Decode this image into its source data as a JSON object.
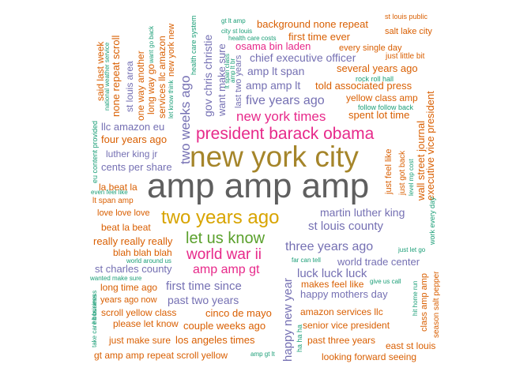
{
  "colors": {
    "gray": "#5f5f5f",
    "olive": "#a5852a",
    "pink": "#e7298a",
    "gold": "#d8a400",
    "green": "#5aa02c",
    "purple": "#7570b3",
    "orange": "#d95f02",
    "teal": "#1b9e77"
  },
  "words": {
    "amp_amp_amp": "amp amp amp",
    "new_york_city": "new york city",
    "president_barack_obama": "president barack obama",
    "two_years_ago": "two years ago",
    "let_us_know": "let us know",
    "world_war_ii": "world war ii",
    "new_york_times": "new york times",
    "five_years_ago": "five years ago",
    "two_weeks_ago": "two weeks ago",
    "three_years_ago": "three years ago",
    "martin_luther_king": "martin luther king",
    "st_louis_county": "st louis county",
    "amp_amp_gt": "amp amp gt",
    "first_time_since": "first time since",
    "luck_luck_luck": "luck luck luck",
    "amp_lt_span": "amp lt span",
    "amp_amp_lt": "amp amp lt",
    "happy_new_year": "happy new year",
    "chief_executive_officer": "chief executive officer",
    "osama_bin_laden": "osama bin laden",
    "past_two_years": "past two years",
    "four_years_ago": "four years ago",
    "st_charles_county": "st charles county",
    "world_trade_center": "world trade center",
    "happy_mothers_day": "happy mothers day",
    "cinco_de_mayo": "cinco de mayo",
    "told_associated_press": "told associated press",
    "spent_lot_time": "spent lot time",
    "cents_per_share": "cents per share",
    "gov_chris_christie": "gov chris christie",
    "want_make_sure": "want make sure",
    "last_two_years": "last two years",
    "background_none_repeat": "background none repeat",
    "first_time_ever": "first time ever",
    "several_years_ago": "several years ago",
    "yellow_class_amp": "yellow class amp",
    "executive_vice_president": "executive vice president",
    "wall_street_journal": "wall street journal",
    "llc_amazon_eu": "llc amazon eu",
    "luther_king_jr": "luther king jr",
    "la_beat_la": "la beat la",
    "love_love_love": "love love love",
    "beat_la_beat": "beat la beat",
    "really_really_really": "really really really",
    "blah_blah_blah": "blah blah blah",
    "long_time_ago": "long time ago",
    "years_ago_now": "years ago now",
    "scroll_yellow_class": "scroll yellow class",
    "please_let_know": "please let know",
    "just_make_sure": "just make sure",
    "couple_weeks_ago": "couple weeks ago",
    "los_angeles_times": "los angeles times",
    "gt_amp_amp": "gt amp amp",
    "repeat_scroll_yellow": "repeat scroll yellow",
    "amazon_services_llc": "amazon services llc",
    "senior_vice_president": "senior vice president",
    "past_three_years": "past three years",
    "makes_feel_like": "makes feel like",
    "looking_forward_seeing": "looking forward seeing",
    "east_st_louis": "east st louis",
    "salt_lake_city": "salt lake city",
    "st_louis_public": "st louis public",
    "every_single_day": "every single day",
    "just_little_bit": "just little bit",
    "rock_roll_hall": "rock roll hall",
    "follow_follow_back": "follow follow back",
    "said_last_week": "said last week",
    "none_repeat_scroll": "none repeat scroll",
    "st_louis_area": "st louis area",
    "one_way_another": "one way another",
    "long_way_go": "long way go",
    "services_llc_amazon": "services llc amazon",
    "new_york_new": "new york new",
    "national_weather_service": "national weather service",
    "want_go_back": "want go back",
    "let_know_think": "let know think",
    "health_care_system": "health care system",
    "gt_lt_amp": "gt lt amp",
    "city_st_louis": "city st louis",
    "health_care_costs": "health care costs",
    "lt_span_class": "lt span class",
    "amp_lt_br": "amp lt br",
    "eu_content_provided": "eu content provided",
    "even_feel_like": "even feel like",
    "lt_span_amp": "lt span amp",
    "world_around_us": "world around us",
    "wanted_make_sure": "wanted make sure",
    "hit_business": "hit business",
    "take_care_business": "take care business",
    "far_can_tell": "far can tell",
    "just_let_go": "just let go",
    "give_us_call": "give us call",
    "hit_home_run": "hit home run",
    "ha_ha_ha": "ha ha ha",
    "amp_gt_lt": "amp gt lt",
    "just_feel_like": "just feel like",
    "just_got_back": "just got back",
    "level_mp_cost": "level mp cost",
    "work_every_day": "work every day",
    "class_amp_amp": "class amp amp",
    "season_salt_pepper": "season salt pepper"
  }
}
